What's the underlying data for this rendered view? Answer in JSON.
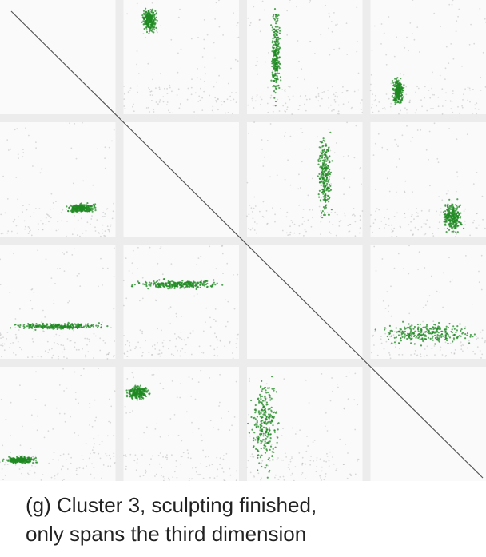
{
  "caption": {
    "line1": "(g) Cluster 3, sculpting finished,",
    "line2": "only spans the third dimension"
  },
  "colors": {
    "background": "#ececec",
    "panel": "#fafafa",
    "highlight": "#1f8a22",
    "other_points": "#9a9a9a",
    "diagonal": "#555555"
  },
  "chart_data": {
    "type": "scatter",
    "description_kind": "scatterplot-matrix",
    "dimensions": 4,
    "diagonal": "diagonal line only",
    "panels": [
      {
        "row": 1,
        "col": 2,
        "highlighted": {
          "x": [
            0.15,
            0.3
          ],
          "y": [
            0.7,
            0.95
          ]
        }
      },
      {
        "row": 1,
        "col": 3,
        "highlighted": {
          "x": [
            0.2,
            0.3
          ],
          "y": [
            0.0,
            1.0
          ]
        }
      },
      {
        "row": 1,
        "col": 4,
        "highlighted": {
          "x": [
            0.18,
            0.3
          ],
          "y": [
            0.05,
            0.35
          ]
        }
      },
      {
        "row": 2,
        "col": 1,
        "highlighted": {
          "x": [
            0.55,
            0.85
          ],
          "y": [
            0.2,
            0.3
          ]
        }
      },
      {
        "row": 2,
        "col": 3,
        "highlighted": {
          "x": [
            0.6,
            0.75
          ],
          "y": [
            0.05,
            1.0
          ]
        }
      },
      {
        "row": 2,
        "col": 4,
        "highlighted": {
          "x": [
            0.6,
            0.82
          ],
          "y": [
            0.0,
            0.35
          ]
        }
      },
      {
        "row": 3,
        "col": 1,
        "highlighted": {
          "x": [
            0.0,
            1.0
          ],
          "y": [
            0.25,
            0.32
          ]
        }
      },
      {
        "row": 3,
        "col": 2,
        "highlighted": {
          "x": [
            0.0,
            1.0
          ],
          "y": [
            0.6,
            0.7
          ]
        }
      },
      {
        "row": 3,
        "col": 4,
        "highlighted": {
          "x": [
            0.0,
            1.0
          ],
          "y": [
            0.1,
            0.35
          ]
        }
      },
      {
        "row": 4,
        "col": 1,
        "highlighted": {
          "x": [
            0.0,
            0.35
          ],
          "y": [
            0.15,
            0.22
          ]
        }
      },
      {
        "row": 4,
        "col": 2,
        "highlighted": {
          "x": [
            0.0,
            0.25
          ],
          "y": [
            0.7,
            0.85
          ]
        }
      },
      {
        "row": 4,
        "col": 3,
        "highlighted": {
          "x": [
            0.0,
            0.3
          ],
          "y": [
            0.0,
            1.0
          ]
        }
      }
    ]
  }
}
